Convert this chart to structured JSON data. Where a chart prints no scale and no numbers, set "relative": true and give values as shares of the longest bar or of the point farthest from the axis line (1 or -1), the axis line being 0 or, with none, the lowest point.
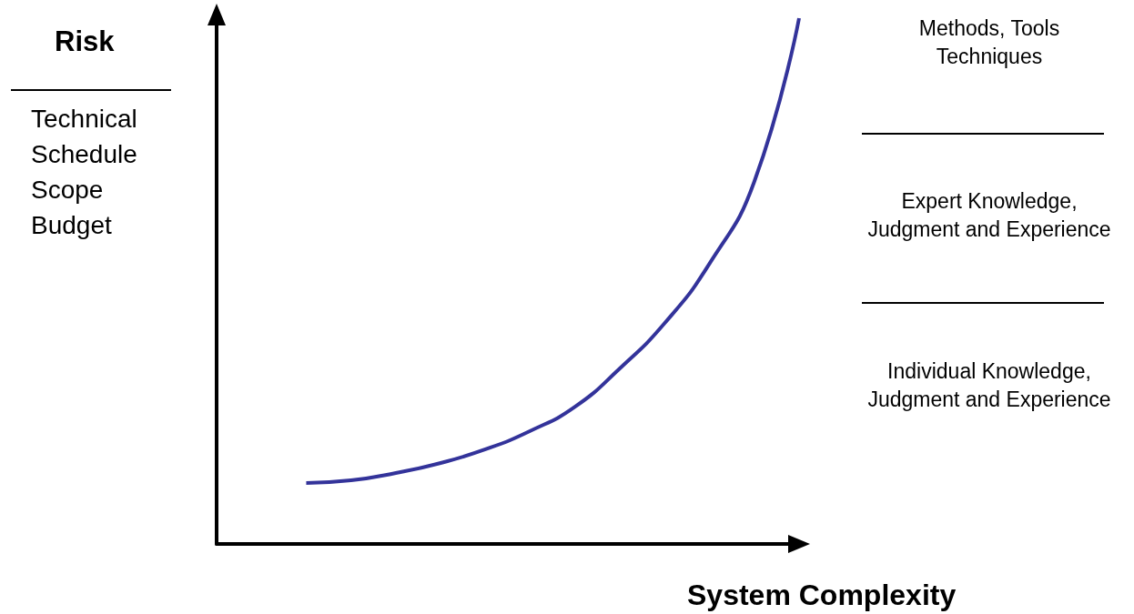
{
  "chart_data": {
    "type": "line",
    "relative": true,
    "ylabel": "Risk",
    "xlabel": "System Complexity",
    "annotations": [
      "Technical\nSchedule\nScope\nBudget",
      "Methods, Tools\nTechniques",
      "Expert Knowledge,\nJudgment and Experience",
      "Individual Knowledge,\nJudgment and Experience"
    ],
    "categories": [
      null,
      null,
      null,
      null,
      null,
      null,
      null,
      null,
      null,
      null,
      null,
      null,
      null,
      null
    ],
    "series": [
      {
        "color": "#33339a",
        "values": [
          null,
          null,
          0.116,
          0.121,
          0.135,
          0.154,
          0.18,
          0.215,
          0.261,
          0.334,
          0.42,
          0.533,
          0.689,
          1
        ]
      }
    ],
    "grid": false,
    "marker": "none",
    "line_style": "solid"
  }
}
